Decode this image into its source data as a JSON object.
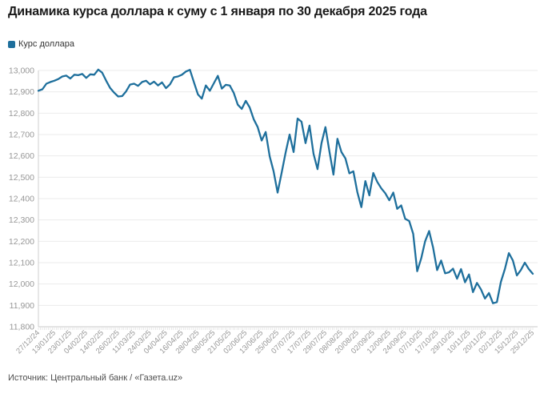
{
  "header": {
    "title": "Динамика курса доллара к суму с 1 января по 30 декабря 2025 года"
  },
  "legend": {
    "label": "Курс доллара",
    "swatch_color": "#1e6f9c"
  },
  "source": {
    "text": "Источник: Центральный банк / «Газета.uz»"
  },
  "chart_data": {
    "type": "line",
    "title": "Динамика курса доллара к суму с 1 января по 30 декабря 2025 года",
    "xlabel": "",
    "ylabel": "",
    "ylim": [
      11800,
      13000
    ],
    "y_tick_step": 100,
    "grid": true,
    "legend_position": "top-left",
    "colors": {
      "line": "#1e6f9c",
      "grid": "#ebebeb",
      "axis": "#c9c9c9",
      "axis_left": "#cfcfcf",
      "tick": "#d9d9d9",
      "tick_label": "#979797"
    },
    "x_labels": [
      "27/12/24",
      "13/01/25",
      "23/01/25",
      "04/02/25",
      "14/02/25",
      "26/02/25",
      "11/03/25",
      "24/03/25",
      "04/04/25",
      "16/04/25",
      "28/04/25",
      "08/05/25",
      "21/05/25",
      "02/06/25",
      "13/06/25",
      "25/06/25",
      "07/07/25",
      "17/07/25",
      "29/07/25",
      "08/08/25",
      "20/08/25",
      "02/09/25",
      "12/09/25",
      "24/09/25",
      "07/10/25",
      "17/10/25",
      "29/10/25",
      "10/11/25",
      "20/11/25",
      "02/12/25",
      "15/12/25",
      "25/12/25"
    ],
    "series": [
      {
        "name": "Курс доллара",
        "color": "#1e6f9c",
        "values": [
          12905,
          12912,
          12938,
          12946,
          12952,
          12960,
          12972,
          12976,
          12962,
          12980,
          12978,
          12984,
          12965,
          12982,
          12980,
          13004,
          12990,
          12952,
          12918,
          12896,
          12878,
          12880,
          12902,
          12934,
          12938,
          12928,
          12946,
          12952,
          12935,
          12948,
          12930,
          12944,
          12917,
          12935,
          12968,
          12972,
          12980,
          12995,
          13003,
          12945,
          12888,
          12868,
          12930,
          12905,
          12940,
          12975,
          12915,
          12933,
          12930,
          12895,
          12840,
          12820,
          12858,
          12827,
          12772,
          12735,
          12672,
          12712,
          12598,
          12528,
          12428,
          12520,
          12615,
          12700,
          12618,
          12775,
          12760,
          12660,
          12742,
          12610,
          12538,
          12660,
          12735,
          12620,
          12512,
          12680,
          12618,
          12588,
          12518,
          12528,
          12430,
          12360,
          12482,
          12415,
          12520,
          12478,
          12448,
          12425,
          12392,
          12428,
          12352,
          12368,
          12305,
          12295,
          12235,
          12060,
          12120,
          12200,
          12248,
          12170,
          12065,
          12110,
          12050,
          12055,
          12072,
          12025,
          12070,
          12008,
          12045,
          11962,
          12005,
          11975,
          11932,
          11958,
          11910,
          11915,
          12010,
          12070,
          12145,
          12110,
          12040,
          12065,
          12100,
          12070,
          12048
        ]
      }
    ]
  }
}
